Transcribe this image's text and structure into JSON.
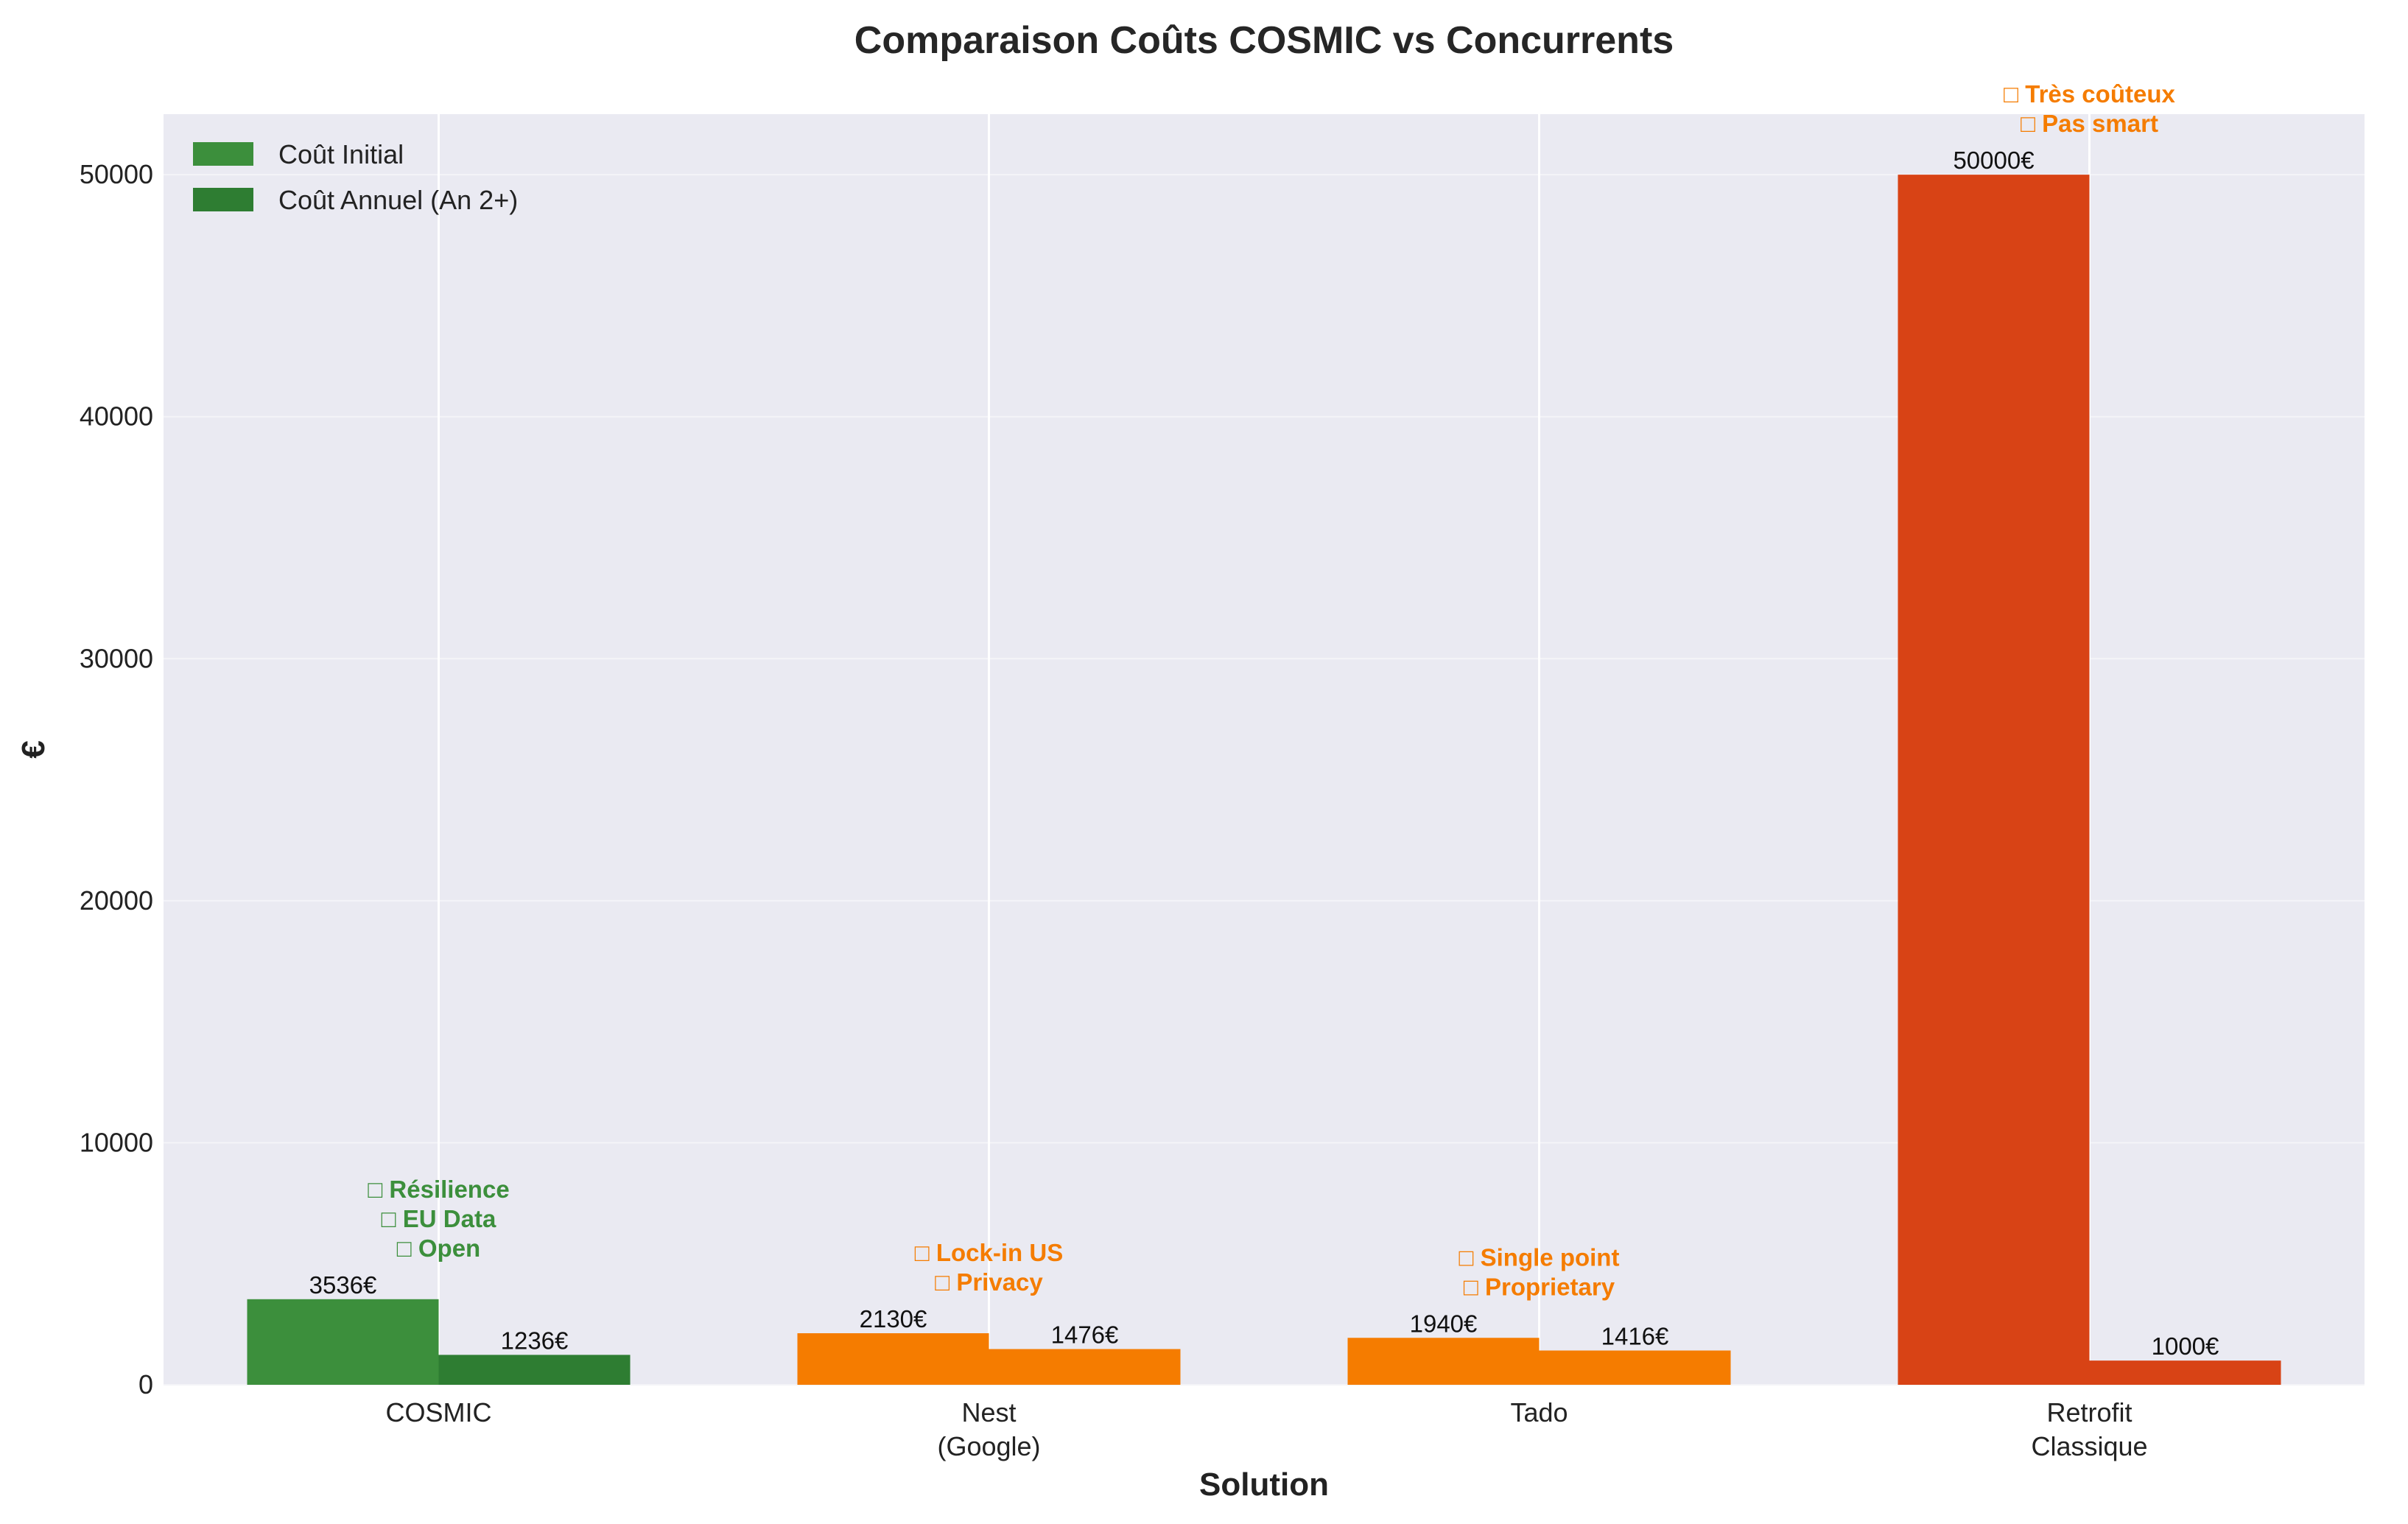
{
  "chart_data": {
    "type": "bar",
    "title": "Comparaison Coûts COSMIC vs Concurrents",
    "xlabel": "Solution",
    "ylabel": "€",
    "ylim": [
      0,
      52500
    ],
    "yticks": [
      "0",
      "10000",
      "20000",
      "30000",
      "40000",
      "50000"
    ],
    "ytick_values": [
      0,
      10000,
      20000,
      30000,
      40000,
      50000
    ],
    "grid": true,
    "legend_position": "top-left",
    "categories": [
      [
        "COSMIC"
      ],
      [
        "Nest",
        "(Google)"
      ],
      [
        "Tado"
      ],
      [
        "Retrofit",
        "Classique"
      ]
    ],
    "series": [
      {
        "name": "Coût Initial",
        "values": [
          3536,
          2130,
          1940,
          50000
        ],
        "labels": [
          "3536€",
          "2130€",
          "1940€",
          "50000€"
        ],
        "colors": [
          "#3c8f3c",
          "#f57c00",
          "#f57c00",
          "#d84315"
        ]
      },
      {
        "name": "Coût Annuel (An 2+)",
        "values": [
          1236,
          1476,
          1416,
          1000
        ],
        "labels": [
          "1236€",
          "1476€",
          "1416€",
          "1000€"
        ],
        "colors": [
          "#2e7d32",
          "#f57c00",
          "#f57c00",
          "#d84315"
        ]
      }
    ],
    "legend_colors": [
      "#3c8f3c",
      "#2e7d32"
    ],
    "annotations": [
      {
        "lines": [
          "□ Résilience",
          "□ EU Data",
          "□ Open"
        ],
        "color": "#3c8f3c",
        "anchor_value": 3536
      },
      {
        "lines": [
          "□ Lock-in US",
          "□ Privacy"
        ],
        "color": "#f57c00",
        "anchor_value": 2130
      },
      {
        "lines": [
          "□ Single point",
          "□ Proprietary"
        ],
        "color": "#f57c00",
        "anchor_value": 1940
      },
      {
        "lines": [
          "□ Très coûteux",
          "□ Pas smart"
        ],
        "color": "#f57c00",
        "anchor_value": 50000
      }
    ]
  }
}
